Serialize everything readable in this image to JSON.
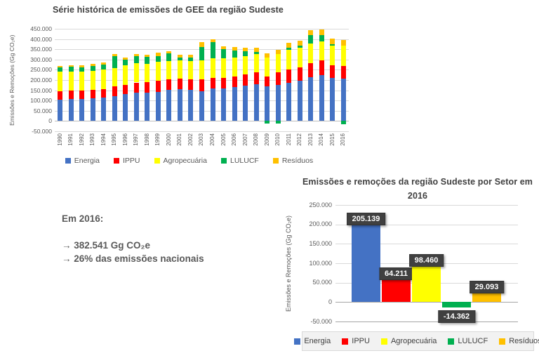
{
  "colors": {
    "energia": "#4472C4",
    "ippu": "#FF0000",
    "agropecuaria": "#FFFF00",
    "lulucf": "#00B050",
    "residuos": "#FFC000",
    "label_box": "#404040",
    "title_text": "#404040",
    "axis_text": "#595959",
    "gridline": "#D9D9D9",
    "legend_band_bg": "#F2F2F2"
  },
  "callout": {
    "heading": "Em 2016:",
    "lines": [
      "→ 382.541 Gg CO₂e",
      "→ 26% das emissões nacionais"
    ]
  },
  "chart_data": [
    {
      "type": "bar",
      "stacked": true,
      "title": "Série histórica de emissões de GEE da região Sudeste",
      "ylabel": "Emissões e Remoções (Gg CO₂e)",
      "ylim": [
        -50000,
        450000
      ],
      "ytick_step": 50000,
      "grid": true,
      "legend_position": "bottom",
      "categories": [
        "1990",
        "1991",
        "1992",
        "1993",
        "1994",
        "1995",
        "1996",
        "1997",
        "1998",
        "1999",
        "2000",
        "2001",
        "2002",
        "2003",
        "2004",
        "2005",
        "2006",
        "2007",
        "2008",
        "2009",
        "2010",
        "2011",
        "2012",
        "2013",
        "2014",
        "2015",
        "2016"
      ],
      "series": [
        {
          "name": "Energia",
          "color": "#4472C4",
          "values": [
            105000,
            107000,
            108000,
            110000,
            113000,
            120000,
            132000,
            140000,
            138000,
            142000,
            151000,
            155000,
            153000,
            146000,
            158000,
            160000,
            165000,
            172000,
            178000,
            168000,
            175000,
            185000,
            195000,
            215000,
            225000,
            210000,
            205139
          ]
        },
        {
          "name": "IPPU",
          "color": "#FF0000",
          "values": [
            40000,
            42000,
            40000,
            41000,
            43000,
            48000,
            45000,
            48000,
            52000,
            54000,
            53000,
            52000,
            52000,
            56000,
            52000,
            50000,
            52000,
            55000,
            58000,
            50000,
            62000,
            68000,
            66000,
            68000,
            70000,
            62000,
            64211
          ]
        },
        {
          "name": "Agropecuária",
          "color": "#FFFF00",
          "values": [
            95000,
            93000,
            93000,
            95000,
            96000,
            90000,
            95000,
            95000,
            90000,
            93000,
            87000,
            88000,
            88000,
            95000,
            95000,
            95000,
            92000,
            90000,
            90000,
            92000,
            90000,
            95000,
            95000,
            95000,
            95000,
            96000,
            98460
          ]
        },
        {
          "name": "LULUCF",
          "color": "#00B050",
          "values": [
            20000,
            22000,
            22000,
            23000,
            24000,
            60000,
            28000,
            35000,
            33000,
            28000,
            38000,
            15000,
            18000,
            65000,
            80000,
            45000,
            35000,
            25000,
            12000,
            -12000,
            -13000,
            10000,
            12000,
            40000,
            28000,
            5000,
            -14362
          ]
        },
        {
          "name": "Resíduos",
          "color": "#FFC000",
          "values": [
            8000,
            8000,
            9000,
            9000,
            10000,
            9000,
            10000,
            10000,
            11000,
            15000,
            11000,
            12000,
            12000,
            22000,
            15000,
            15000,
            16000,
            17000,
            18000,
            19000,
            20000,
            22000,
            24000,
            26000,
            27000,
            28000,
            29093
          ]
        }
      ]
    },
    {
      "type": "bar",
      "title": "Emissões e remoções da região Sudeste por Setor em 2016",
      "ylabel": "Emissões e Remoções (Gg CO₂e)",
      "ylim": [
        -50000,
        250000
      ],
      "ytick_step": 50000,
      "grid": true,
      "legend_position": "bottom",
      "categories": [
        "Energia",
        "IPPU",
        "Agropecuária",
        "LULUCF",
        "Resíduos"
      ],
      "values": [
        205139,
        64211,
        98460,
        -14362,
        29093
      ],
      "data_labels": [
        "205.139",
        "64.211",
        "98.460",
        "-14.362",
        "29.093"
      ],
      "bar_colors": [
        "#4472C4",
        "#FF0000",
        "#FFFF00",
        "#00B050",
        "#FFC000"
      ]
    }
  ]
}
